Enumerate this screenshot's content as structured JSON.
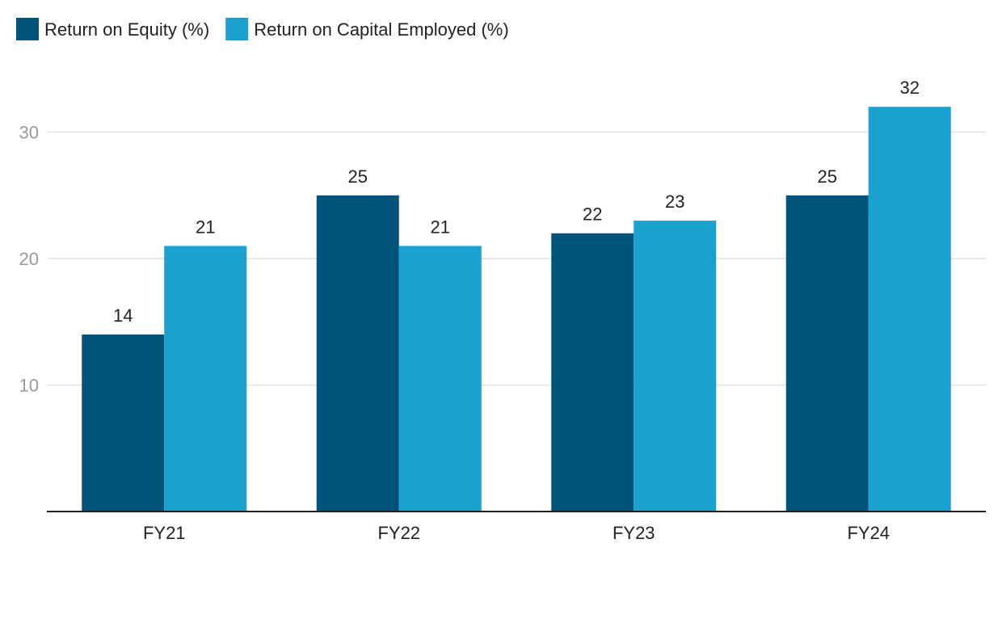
{
  "chart_data": {
    "type": "bar",
    "categories": [
      "FY21",
      "FY22",
      "FY23",
      "FY24"
    ],
    "series": [
      {
        "name": "Return on Equity (%)",
        "color": "#02537a",
        "values": [
          14,
          25,
          22,
          25
        ]
      },
      {
        "name": "Return on Capital Employed (%)",
        "color": "#1ba1cf",
        "values": [
          21,
          21,
          23,
          32
        ]
      }
    ],
    "y_ticks": [
      10,
      20,
      30
    ],
    "ylim": [
      0,
      35
    ],
    "grid": true,
    "legend_position": "top-left",
    "data_labels": true
  }
}
